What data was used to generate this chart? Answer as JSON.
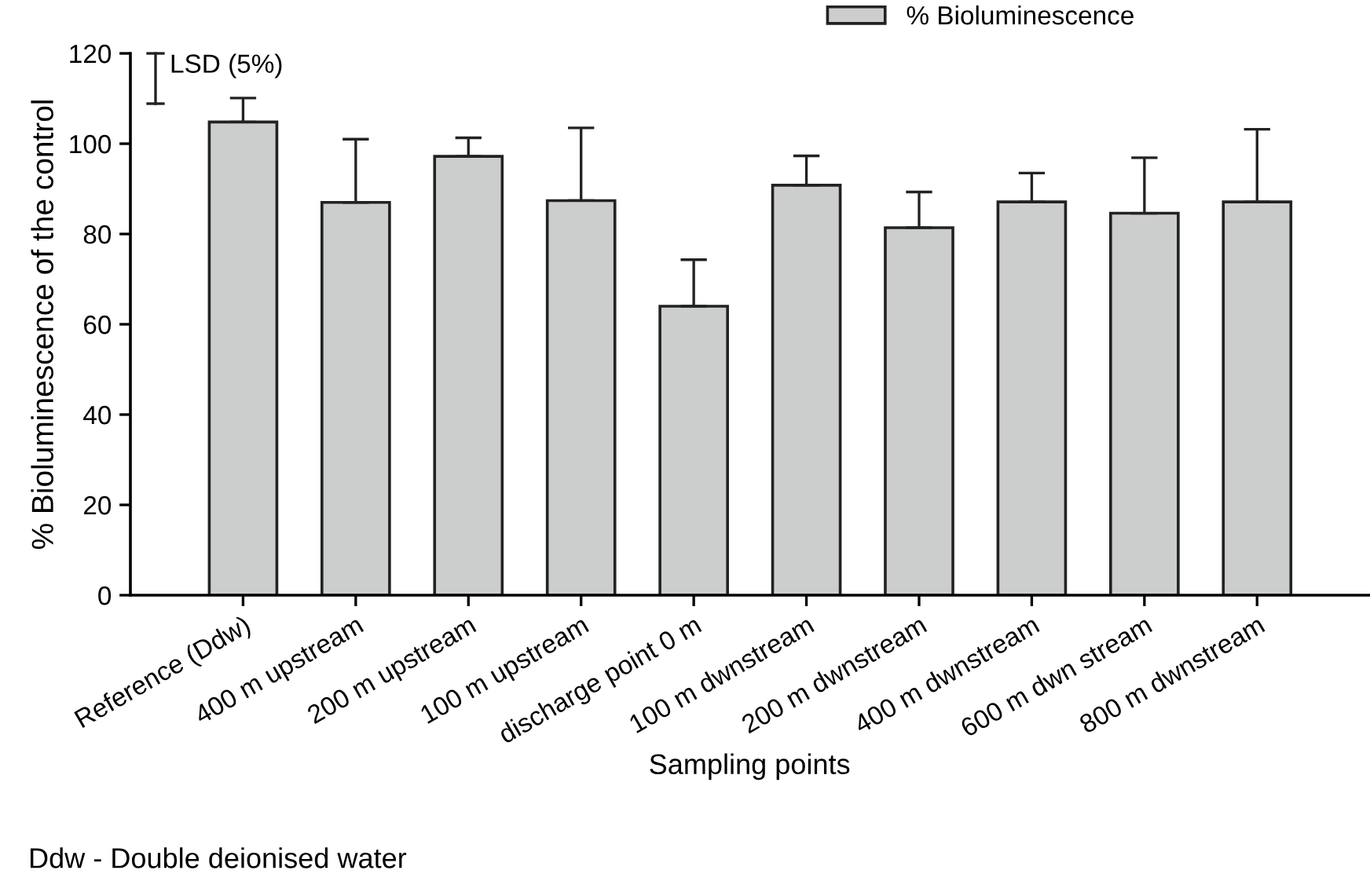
{
  "chart_data": {
    "type": "bar",
    "xlabel": "Sampling points",
    "ylabel": "% Bioluminescence of the control",
    "categories": [
      "Reference (Ddw)",
      "400 m upstream",
      "200 m upstream",
      "100 m upstream",
      "discharge point 0 m",
      "100 m dwnstream",
      "200 m dwnstream",
      "400 m dwnstream",
      "600 m dwn stream",
      "800 m dwnstream"
    ],
    "series": [
      {
        "name": "% Bioluminescence",
        "color": "#cccecd",
        "values": [
          104.8,
          87.0,
          97.2,
          87.4,
          64.0,
          90.8,
          81.4,
          87.1,
          84.6,
          87.1
        ],
        "errors": [
          [
            104.8,
            110.1
          ],
          [
            87.0,
            101.0
          ],
          [
            97.2,
            101.3
          ],
          [
            87.4,
            103.5
          ],
          [
            64.0,
            74.3
          ],
          [
            90.8,
            97.3
          ],
          [
            81.4,
            89.3
          ],
          [
            87.1,
            93.5
          ],
          [
            84.6,
            96.9
          ],
          [
            87.1,
            103.2
          ]
        ]
      }
    ],
    "ylim": [
      0,
      120
    ],
    "yticks": [
      0,
      20,
      40,
      60,
      80,
      100,
      120
    ],
    "legend": "top right",
    "grid": false,
    "annotations": [
      "LSD (5%)",
      "Ddw - Double deionised water"
    ]
  }
}
